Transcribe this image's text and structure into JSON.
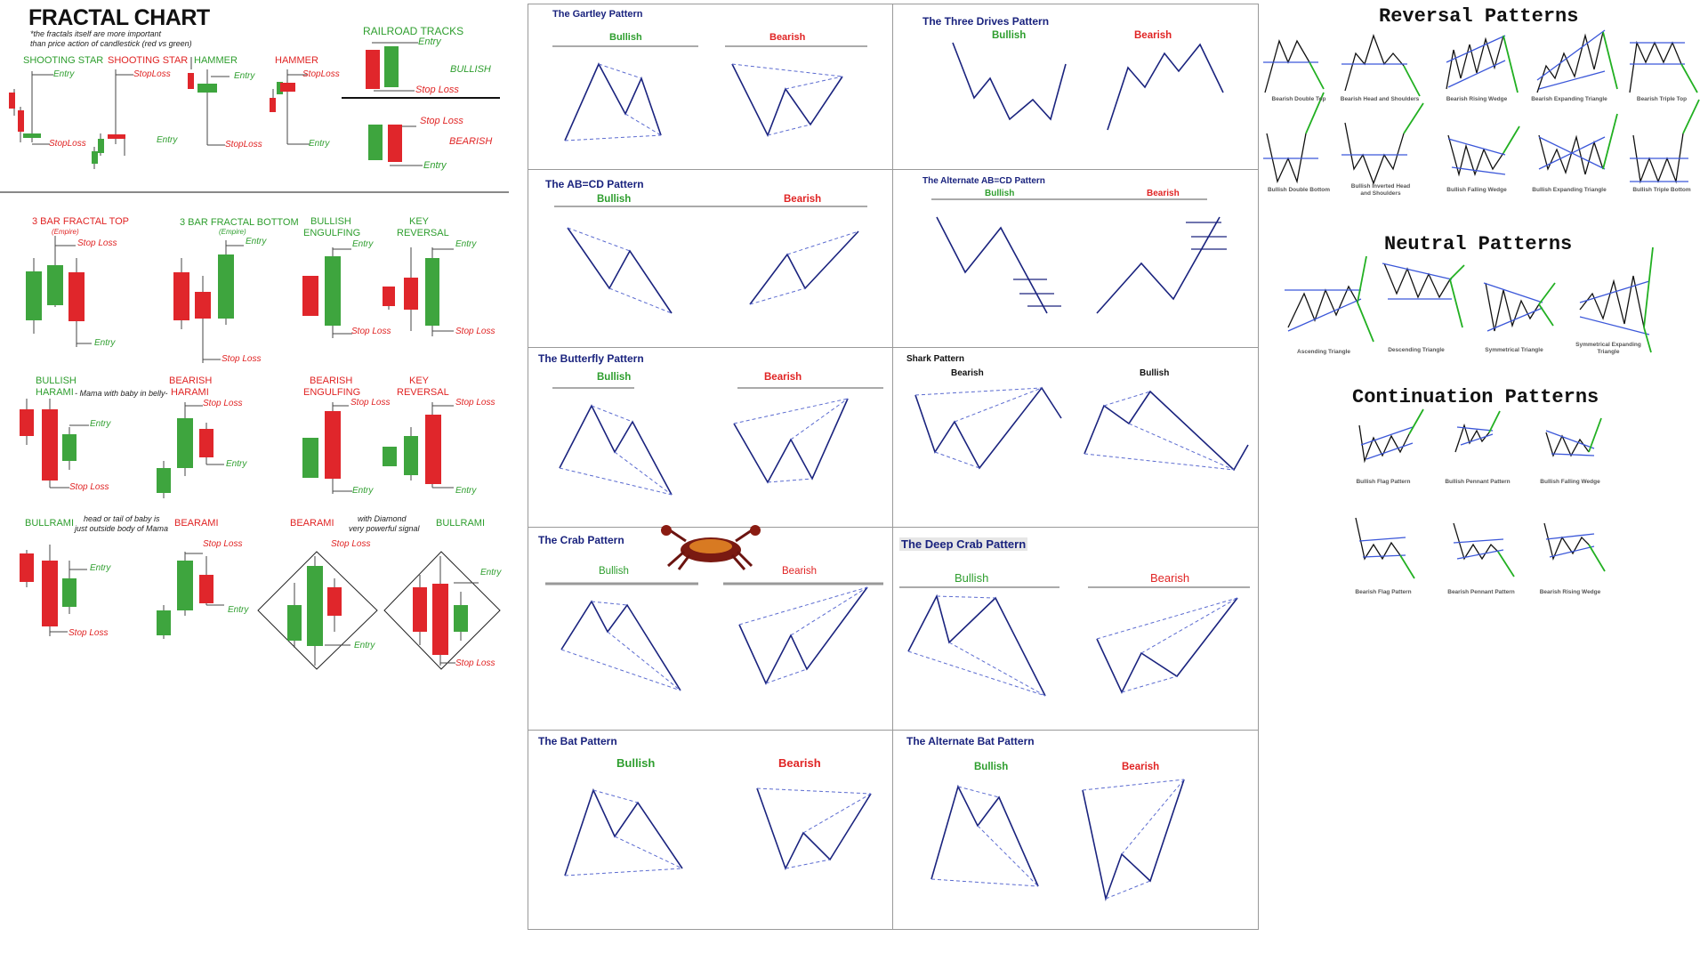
{
  "fractal": {
    "title": "FRACTAL CHART",
    "note_line1": "*the fractals itself are more important",
    "note_line2": "than price action of candlestick (red vs green)",
    "shooting_star_green": "SHOOTING STAR",
    "shooting_star_red": "SHOOTING STAR",
    "hammer_green": "HAMMER",
    "hammer_red": "HAMMER",
    "railroad": "RAILROAD TRACKS",
    "bullish": "BULLISH",
    "bearish": "BEARISH",
    "entry": "Entry",
    "stop_loss": "Stop Loss",
    "stoploss_tight": "StopLoss",
    "fractal_top": "3 BAR FRACTAL TOP",
    "fractal_bottom": "3 BAR FRACTAL BOTTOM",
    "empire": "(Empire)",
    "bullish_engulfing_1": "BULLISH",
    "bullish_engulfing_2": "ENGULFING",
    "key_reversal_1": "KEY",
    "key_reversal_2": "REVERSAL",
    "bullish_harami_1": "BULLISH",
    "bullish_harami_2": "HARAMI",
    "harami_note": "- Mama with baby in belly-",
    "bearish_harami_1": "BEARISH",
    "bearish_harami_2": "HARAMI",
    "bearish_engulfing_1": "BEARISH",
    "bearish_engulfing_2": "ENGULFING",
    "bullrami": "BULLRAMI",
    "bullrami_note1": "head or tail of baby is",
    "bullrami_note2": "just outside body of Mama",
    "bearami": "BEARAMI",
    "bearami2": "BEARAMI",
    "diamond_note1": "with Diamond",
    "diamond_note2": "very powerful signal",
    "bullrami2": "BULLRAMI"
  },
  "harmonic": {
    "bullish": "Bullish",
    "bearish": "Bearish",
    "gartley": "The Gartley Pattern",
    "three_drives": "The Three Drives Pattern",
    "abcd": "The AB=CD Pattern",
    "alt_abcd": "The Alternate AB=CD Pattern",
    "butterfly": "The Butterfly Pattern",
    "shark": "Shark Pattern",
    "crab": "The Crab Pattern",
    "deep_crab": "The Deep Crab Pattern",
    "bat": "The Bat Pattern",
    "alt_bat": "The Alternate Bat Pattern"
  },
  "patterns": {
    "reversal_title": "Reversal Patterns",
    "neutral_title": "Neutral Patterns",
    "continuation_title": "Continuation Patterns",
    "reversal": [
      "Bearish Double Top",
      "Bearish Head and Shoulders",
      "Bearish Rising Wedge",
      "Bearish Expanding Triangle",
      "Bearish Triple Top",
      "Bullish Double Bottom",
      "Bullish Inverted Head and Shoulders",
      "Bullish Falling Wedge",
      "Bullish Expanding Triangle",
      "Bullish Triple Bottom"
    ],
    "neutral": [
      "Ascending Triangle",
      "Descending Triangle",
      "Symmetrical Triangle",
      "Symmetrical Expanding Triangle"
    ],
    "continuation": [
      "Bullish Flag Pattern",
      "Bullish Pennant Pattern",
      "Bullish Falling Wedge",
      "Bearish Flag Pattern",
      "Bearish Pennant Pattern",
      "Bearish Rising Wedge"
    ]
  },
  "colors": {
    "green": "#3ea53e",
    "red": "#e0262b",
    "navy": "#1a237e",
    "blue": "#3b57d9",
    "arrow": "#22b022"
  }
}
